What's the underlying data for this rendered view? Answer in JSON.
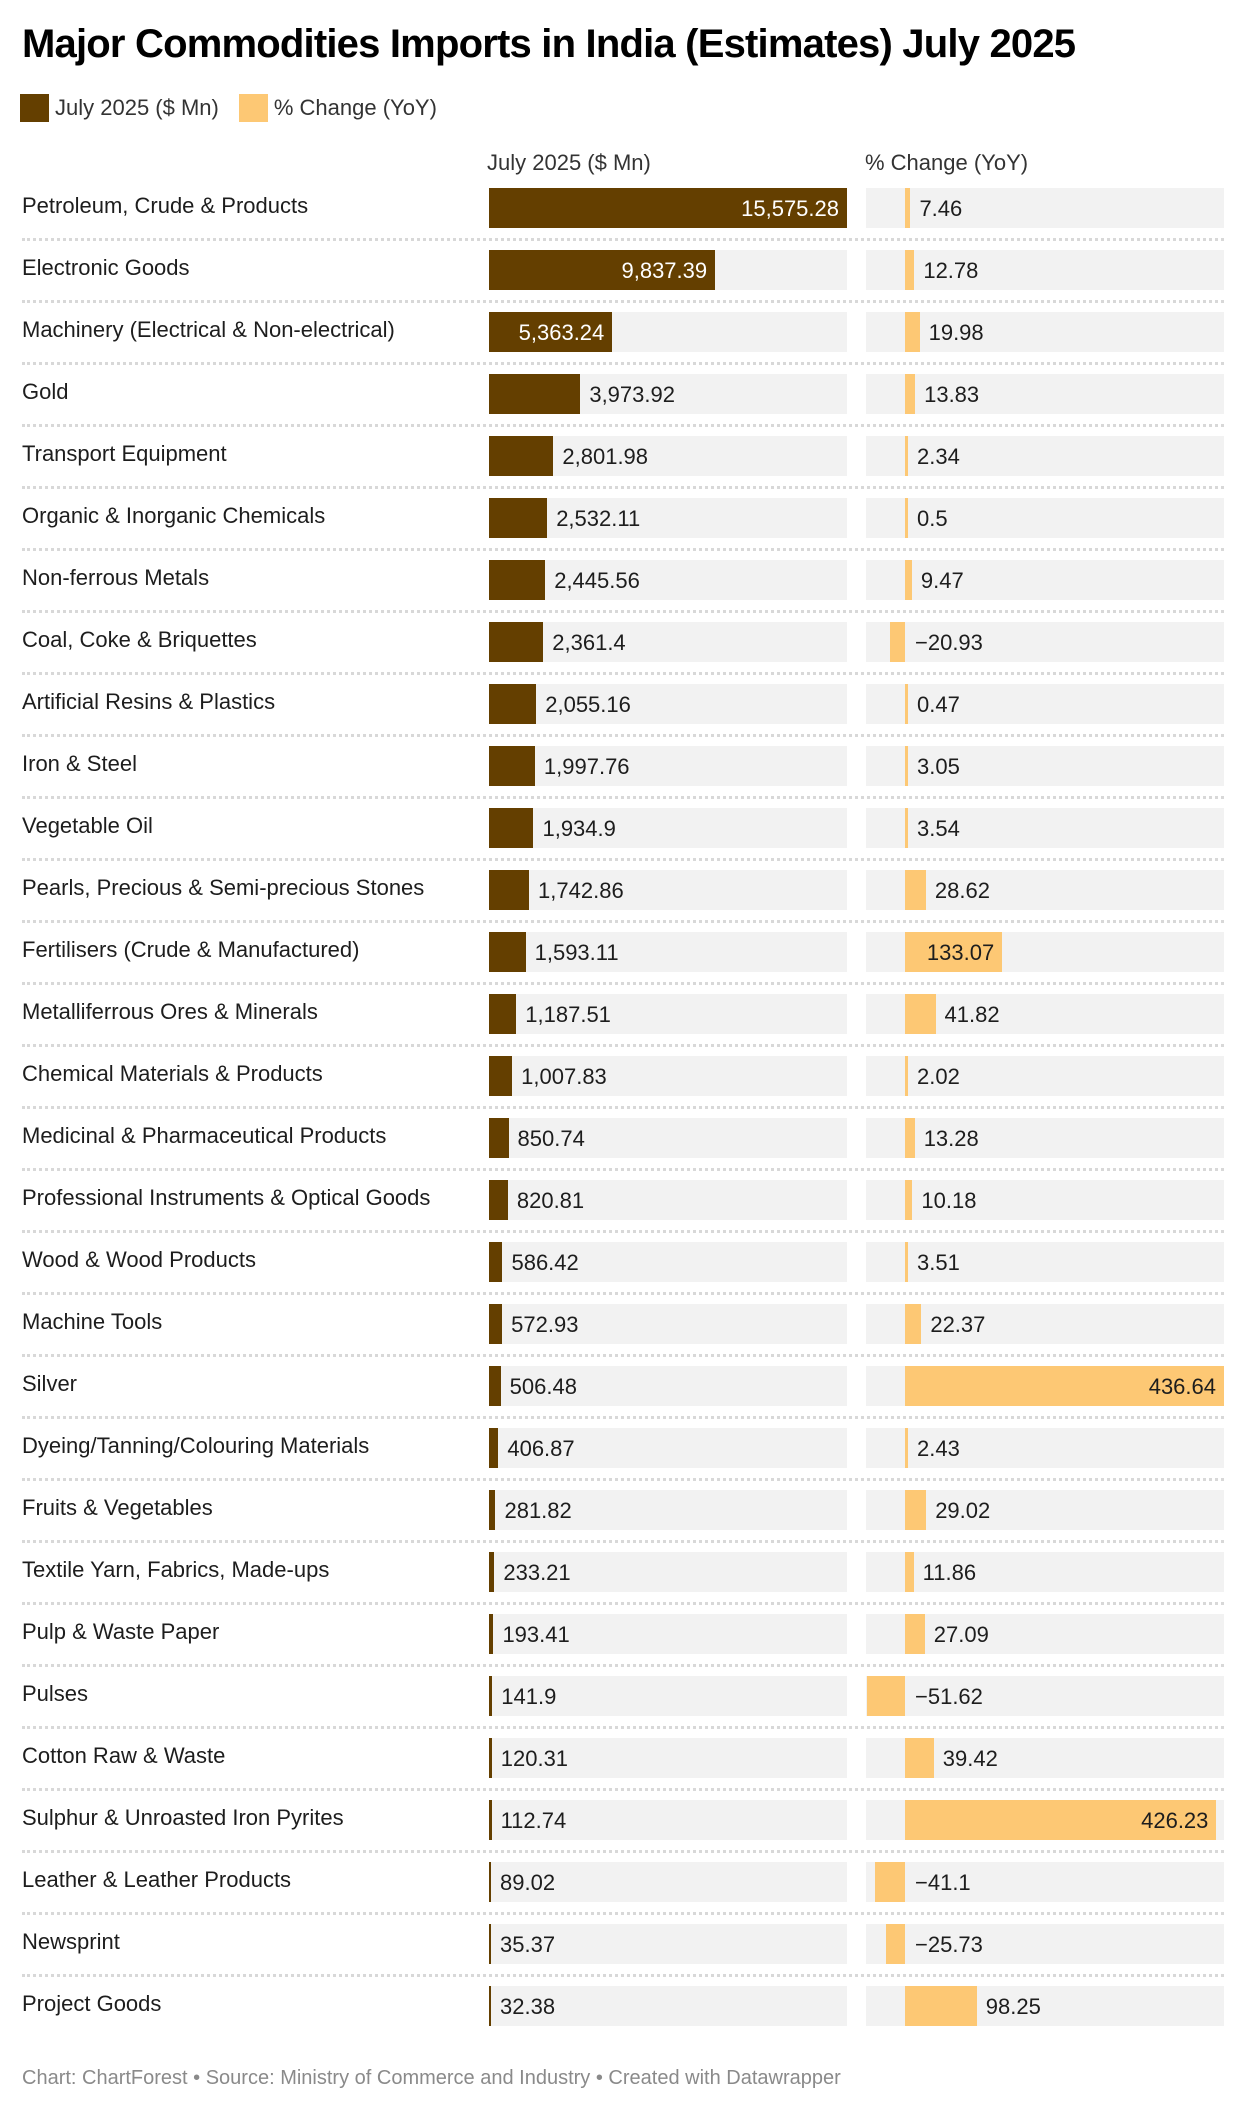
{
  "title": "Major Commodities Imports in India (Estimates) July 2025",
  "legend": [
    {
      "label": "July 2025 ($ Mn)",
      "color": "#643f00"
    },
    {
      "label": "% Change (YoY)",
      "color": "#fdc874"
    }
  ],
  "footer": "Chart: ChartForest • Source: Ministry of Commerce and Industry • Created with Datawrapper",
  "chart_data": {
    "type": "bar",
    "columns": [
      "July 2025 ($ Mn)",
      "% Change (YoY)"
    ],
    "colors": {
      "value": "#643f00",
      "change": "#fdc874",
      "track": "#f2f2f2"
    },
    "rows": [
      {
        "category": "Petroleum, Crude & Products",
        "value": 15575.28,
        "value_label": "15,575.28",
        "change": 7.46,
        "change_label": "7.46"
      },
      {
        "category": "Electronic Goods",
        "value": 9837.39,
        "value_label": "9,837.39",
        "change": 12.78,
        "change_label": "12.78"
      },
      {
        "category": "Machinery (Electrical & Non-electrical)",
        "value": 5363.24,
        "value_label": "5,363.24",
        "change": 19.98,
        "change_label": "19.98"
      },
      {
        "category": "Gold",
        "value": 3973.92,
        "value_label": "3,973.92",
        "change": 13.83,
        "change_label": "13.83"
      },
      {
        "category": "Transport Equipment",
        "value": 2801.98,
        "value_label": "2,801.98",
        "change": 2.34,
        "change_label": "2.34"
      },
      {
        "category": "Organic & Inorganic Chemicals",
        "value": 2532.11,
        "value_label": "2,532.11",
        "change": 0.5,
        "change_label": "0.5"
      },
      {
        "category": "Non-ferrous Metals",
        "value": 2445.56,
        "value_label": "2,445.56",
        "change": 9.47,
        "change_label": "9.47"
      },
      {
        "category": "Coal, Coke & Briquettes",
        "value": 2361.4,
        "value_label": "2,361.4",
        "change": -20.93,
        "change_label": "−20.93"
      },
      {
        "category": "Artificial Resins & Plastics",
        "value": 2055.16,
        "value_label": "2,055.16",
        "change": 0.47,
        "change_label": "0.47"
      },
      {
        "category": "Iron & Steel",
        "value": 1997.76,
        "value_label": "1,997.76",
        "change": 3.05,
        "change_label": "3.05"
      },
      {
        "category": "Vegetable Oil",
        "value": 1934.9,
        "value_label": "1,934.9",
        "change": 3.54,
        "change_label": "3.54"
      },
      {
        "category": "Pearls, Precious & Semi-precious Stones",
        "value": 1742.86,
        "value_label": "1,742.86",
        "change": 28.62,
        "change_label": "28.62"
      },
      {
        "category": "Fertilisers (Crude & Manufactured)",
        "value": 1593.11,
        "value_label": "1,593.11",
        "change": 133.07,
        "change_label": "133.07"
      },
      {
        "category": "Metalliferrous Ores & Minerals",
        "value": 1187.51,
        "value_label": "1,187.51",
        "change": 41.82,
        "change_label": "41.82"
      },
      {
        "category": "Chemical Materials & Products",
        "value": 1007.83,
        "value_label": "1,007.83",
        "change": 2.02,
        "change_label": "2.02"
      },
      {
        "category": "Medicinal & Pharmaceutical Products",
        "value": 850.74,
        "value_label": "850.74",
        "change": 13.28,
        "change_label": "13.28"
      },
      {
        "category": "Professional Instruments & Optical Goods",
        "value": 820.81,
        "value_label": "820.81",
        "change": 10.18,
        "change_label": "10.18"
      },
      {
        "category": "Wood & Wood Products",
        "value": 586.42,
        "value_label": "586.42",
        "change": 3.51,
        "change_label": "3.51"
      },
      {
        "category": "Machine Tools",
        "value": 572.93,
        "value_label": "572.93",
        "change": 22.37,
        "change_label": "22.37"
      },
      {
        "category": "Silver",
        "value": 506.48,
        "value_label": "506.48",
        "change": 436.64,
        "change_label": "436.64"
      },
      {
        "category": "Dyeing/Tanning/Colouring Materials",
        "value": 406.87,
        "value_label": "406.87",
        "change": 2.43,
        "change_label": "2.43"
      },
      {
        "category": "Fruits & Vegetables",
        "value": 281.82,
        "value_label": "281.82",
        "change": 29.02,
        "change_label": "29.02"
      },
      {
        "category": "Textile Yarn, Fabrics, Made-ups",
        "value": 233.21,
        "value_label": "233.21",
        "change": 11.86,
        "change_label": "11.86"
      },
      {
        "category": "Pulp & Waste Paper",
        "value": 193.41,
        "value_label": "193.41",
        "change": 27.09,
        "change_label": "27.09"
      },
      {
        "category": "Pulses",
        "value": 141.9,
        "value_label": "141.9",
        "change": -51.62,
        "change_label": "−51.62"
      },
      {
        "category": "Cotton Raw & Waste",
        "value": 120.31,
        "value_label": "120.31",
        "change": 39.42,
        "change_label": "39.42"
      },
      {
        "category": "Sulphur & Unroasted Iron Pyrites",
        "value": 112.74,
        "value_label": "112.74",
        "change": 426.23,
        "change_label": "426.23"
      },
      {
        "category": "Leather & Leather Products",
        "value": 89.02,
        "value_label": "89.02",
        "change": -41.1,
        "change_label": "−41.1"
      },
      {
        "category": "Newsprint",
        "value": 35.37,
        "value_label": "35.37",
        "change": -25.73,
        "change_label": "−25.73"
      },
      {
        "category": "Project Goods",
        "value": 32.38,
        "value_label": "32.38",
        "change": 98.25,
        "change_label": "98.25"
      }
    ]
  }
}
